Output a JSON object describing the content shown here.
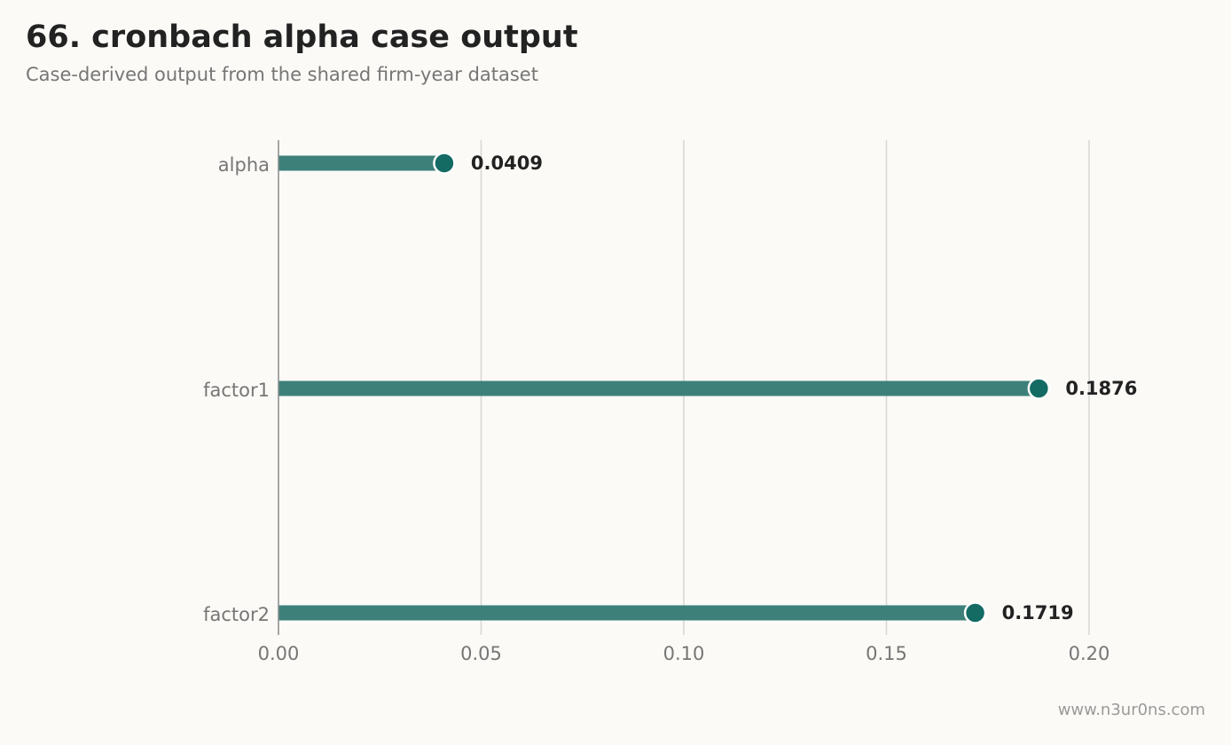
{
  "title": "66. cronbach alpha case output",
  "subtitle": "Case-derived output from the shared firm-year dataset",
  "watermark": "www.n3ur0ns.com",
  "colors": {
    "bar": "#3d807a",
    "dot": "#136b64",
    "grid": "#d6d6d2",
    "axis": "#8a8a8a",
    "background": "#fbfaf7"
  },
  "chart_data": {
    "type": "bar",
    "orientation": "horizontal",
    "style": "lollipop",
    "categories": [
      "alpha",
      "factor1",
      "factor2"
    ],
    "values": [
      0.0409,
      0.1876,
      0.1719
    ],
    "value_labels": [
      "0.0409",
      "0.1876",
      "0.1719"
    ],
    "xlim": [
      0,
      0.2
    ],
    "xticks": [
      0.0,
      0.05,
      0.1,
      0.15,
      0.2
    ],
    "xtick_labels": [
      "0.00",
      "0.05",
      "0.10",
      "0.15",
      "0.20"
    ],
    "xlabel": "",
    "ylabel": "",
    "grid": "vertical"
  }
}
